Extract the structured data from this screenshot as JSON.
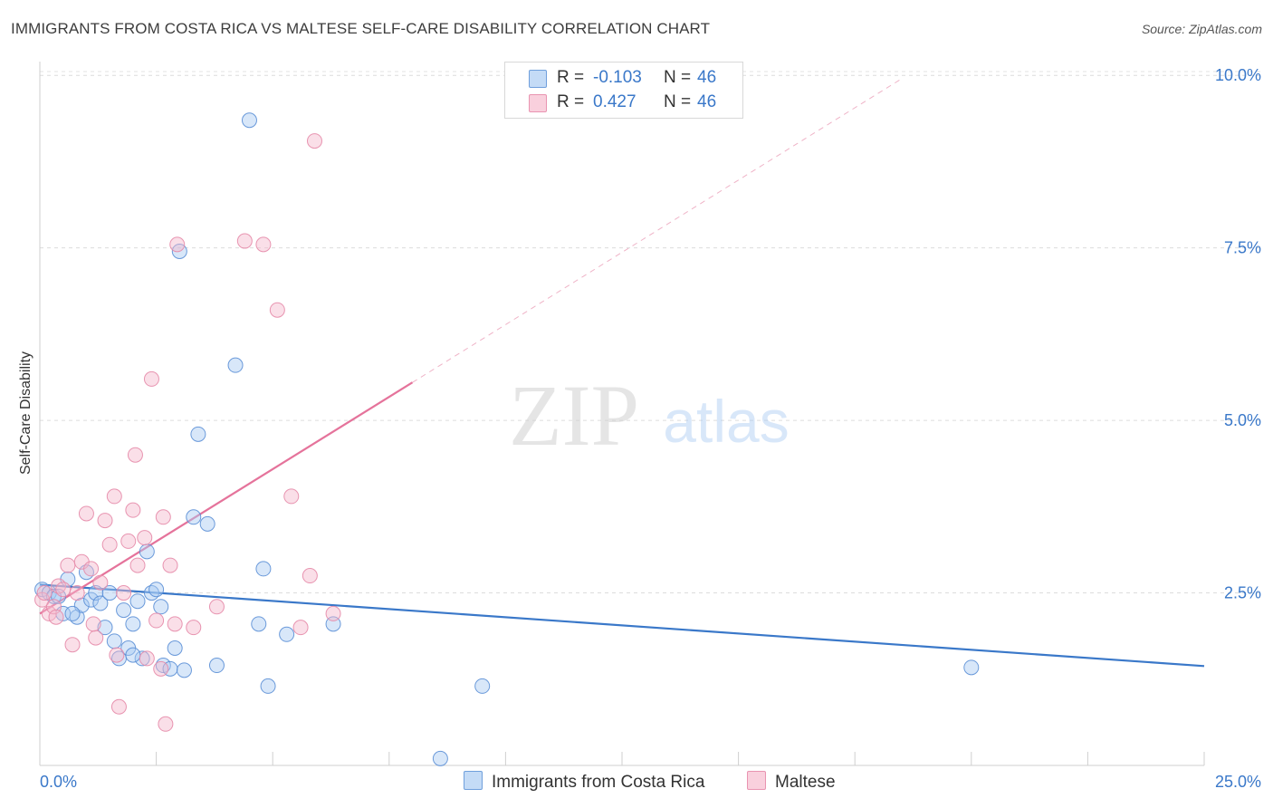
{
  "title": "IMMIGRANTS FROM COSTA RICA VS MALTESE SELF-CARE DISABILITY CORRELATION CHART",
  "source": "Source: ZipAtlas.com",
  "watermark": {
    "zip": "ZIP",
    "atlas": "atlas"
  },
  "legend": {
    "series1": {
      "r_label": "R =",
      "r_value": "-0.103",
      "n_label": "N =",
      "n_value": "46"
    },
    "series2": {
      "r_label": "R =",
      "r_value": "0.427",
      "n_label": "N =",
      "n_value": "46"
    }
  },
  "colors": {
    "blue": "#3a78c9",
    "blue_fill": "#a9c9f2",
    "pink": "#e5739b",
    "pink_fill": "#f5b9cc"
  },
  "chart_data": {
    "type": "scatter",
    "title": "IMMIGRANTS FROM COSTA RICA VS MALTESE SELF-CARE DISABILITY CORRELATION CHART",
    "xlabel": "",
    "ylabel": "Self-Care Disability",
    "xlim": [
      0,
      25
    ],
    "ylim": [
      0,
      10.2
    ],
    "x_ticks": [
      "0.0%",
      "25.0%"
    ],
    "y_ticks": [
      {
        "value": 2.5,
        "label": "2.5%"
      },
      {
        "value": 5.0,
        "label": "5.0%"
      },
      {
        "value": 7.5,
        "label": "7.5%"
      },
      {
        "value": 10.0,
        "label": "10.0%"
      }
    ],
    "grid": true,
    "legend_position": "bottom-center",
    "series": [
      {
        "name": "Immigrants from Costa Rica",
        "color": "#3a78c9",
        "trend": {
          "x": [
            0,
            25
          ],
          "y": [
            2.62,
            1.44
          ]
        },
        "points": [
          [
            0.05,
            2.55
          ],
          [
            0.2,
            2.5
          ],
          [
            0.3,
            2.45
          ],
          [
            0.5,
            2.2
          ],
          [
            0.6,
            2.7
          ],
          [
            0.8,
            2.15
          ],
          [
            0.9,
            2.32
          ],
          [
            1.0,
            2.8
          ],
          [
            1.1,
            2.4
          ],
          [
            1.2,
            2.5
          ],
          [
            1.3,
            2.35
          ],
          [
            1.4,
            2.0
          ],
          [
            1.6,
            1.8
          ],
          [
            1.7,
            1.55
          ],
          [
            1.8,
            2.25
          ],
          [
            1.9,
            1.7
          ],
          [
            2.0,
            2.05
          ],
          [
            2.1,
            2.38
          ],
          [
            2.2,
            1.55
          ],
          [
            2.3,
            3.1
          ],
          [
            2.4,
            2.5
          ],
          [
            2.5,
            2.55
          ],
          [
            2.6,
            2.3
          ],
          [
            2.65,
            1.45
          ],
          [
            2.8,
            1.4
          ],
          [
            2.9,
            1.7
          ],
          [
            3.0,
            7.45
          ],
          [
            3.1,
            1.38
          ],
          [
            3.3,
            3.6
          ],
          [
            3.4,
            4.8
          ],
          [
            3.6,
            3.5
          ],
          [
            3.8,
            1.45
          ],
          [
            4.2,
            5.8
          ],
          [
            4.5,
            9.35
          ],
          [
            4.7,
            2.05
          ],
          [
            4.8,
            2.85
          ],
          [
            4.9,
            1.15
          ],
          [
            5.3,
            1.9
          ],
          [
            6.3,
            2.05
          ],
          [
            8.6,
            0.1
          ],
          [
            9.5,
            1.15
          ],
          [
            20.0,
            1.42
          ],
          [
            0.4,
            2.45
          ],
          [
            1.5,
            2.5
          ],
          [
            0.7,
            2.2
          ],
          [
            2.0,
            1.6
          ]
        ]
      },
      {
        "name": "Maltese",
        "color": "#e5739b",
        "trend": {
          "x": [
            0,
            8.0
          ],
          "y": [
            2.2,
            5.55
          ]
        },
        "trend_extension": {
          "x": [
            8.0,
            18.5
          ],
          "y": [
            5.55,
            9.95
          ]
        },
        "points": [
          [
            0.05,
            2.4
          ],
          [
            0.1,
            2.5
          ],
          [
            0.2,
            2.2
          ],
          [
            0.3,
            2.3
          ],
          [
            0.4,
            2.6
          ],
          [
            0.5,
            2.55
          ],
          [
            0.6,
            2.9
          ],
          [
            0.7,
            1.75
          ],
          [
            0.8,
            2.5
          ],
          [
            0.9,
            2.95
          ],
          [
            1.0,
            3.65
          ],
          [
            1.1,
            2.85
          ],
          [
            1.2,
            1.85
          ],
          [
            1.3,
            2.65
          ],
          [
            1.4,
            3.55
          ],
          [
            1.5,
            3.2
          ],
          [
            1.6,
            3.9
          ],
          [
            1.65,
            1.6
          ],
          [
            1.7,
            0.85
          ],
          [
            1.8,
            2.5
          ],
          [
            1.9,
            3.25
          ],
          [
            2.0,
            3.7
          ],
          [
            2.05,
            4.5
          ],
          [
            2.1,
            2.9
          ],
          [
            2.25,
            3.3
          ],
          [
            2.4,
            5.6
          ],
          [
            2.5,
            2.1
          ],
          [
            2.6,
            1.4
          ],
          [
            2.65,
            3.6
          ],
          [
            2.7,
            0.6
          ],
          [
            2.8,
            2.9
          ],
          [
            2.9,
            2.05
          ],
          [
            2.95,
            7.55
          ],
          [
            3.3,
            2.0
          ],
          [
            3.8,
            2.3
          ],
          [
            4.4,
            7.6
          ],
          [
            4.8,
            7.55
          ],
          [
            5.1,
            6.6
          ],
          [
            5.4,
            3.9
          ],
          [
            5.6,
            2.0
          ],
          [
            5.8,
            2.75
          ],
          [
            5.9,
            9.05
          ],
          [
            6.3,
            2.2
          ],
          [
            0.35,
            2.15
          ],
          [
            1.15,
            2.05
          ],
          [
            2.3,
            1.55
          ]
        ]
      }
    ]
  }
}
